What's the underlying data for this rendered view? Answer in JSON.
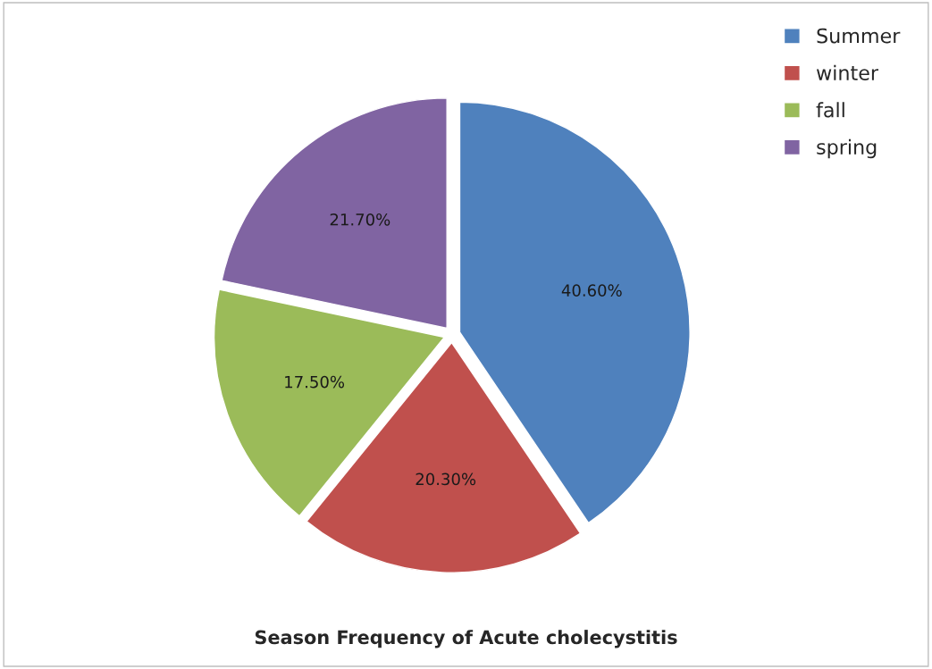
{
  "chart_data": {
    "type": "pie",
    "title": "Season Frequency of Acute cholecystitis",
    "categories": [
      "Summer",
      "winter",
      "fall",
      "spring"
    ],
    "values": [
      40.6,
      20.3,
      17.5,
      21.7
    ],
    "value_labels": [
      "40.60%",
      "20.30%",
      "17.50%",
      "21.70%"
    ],
    "colors": [
      "#4f81bd",
      "#c0504d",
      "#9bbb59",
      "#8064a2"
    ],
    "legend": "top right"
  }
}
